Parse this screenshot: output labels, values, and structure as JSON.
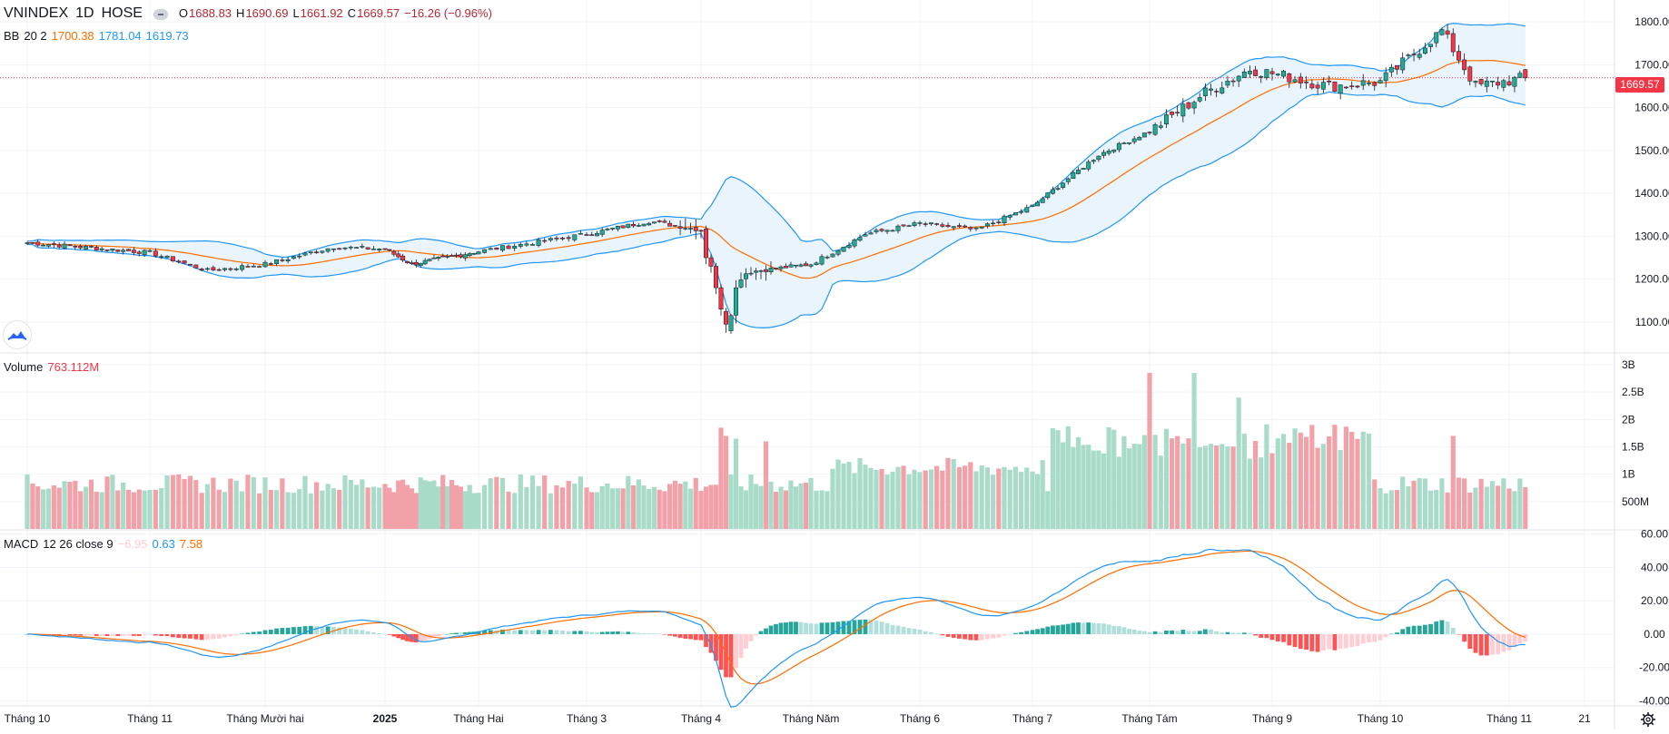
{
  "header": {
    "symbol": "VNINDEX",
    "interval": "1D",
    "exchange": "HOSE",
    "open_label": "O",
    "open": "1688.83",
    "high_label": "H",
    "high": "1690.69",
    "low_label": "L",
    "low": "1661.92",
    "close_label": "C",
    "close": "1669.57",
    "change": "−16.26 (−0.96%)"
  },
  "bb_legend": {
    "name": "BB",
    "params": "20 2",
    "basis": "1700.38",
    "upper": "1781.04",
    "lower": "1619.73"
  },
  "volume_legend": {
    "name": "Volume",
    "value": "763.112M"
  },
  "macd_legend": {
    "name": "MACD",
    "params": "12 26 close 9",
    "hist": "−6.95",
    "macd": "0.63",
    "signal": "7.58"
  },
  "last_price_tag": "1669.57",
  "colors": {
    "up": "#22ab94",
    "down": "#f23645",
    "vol_up": "#a8dcc9",
    "vol_down": "#f2a1a8",
    "bb_basis": "#ff6d00",
    "bb_band": "#2196f3",
    "bb_fill": "#eaf4fc",
    "macd": "#2196f3",
    "signal": "#ff6d00",
    "hist_up_strong": "#26a69a",
    "hist_up_weak": "#b2dfdb",
    "hist_down_strong": "#ff5252",
    "hist_down_weak": "#ffcdd2"
  },
  "icons": {
    "logo": "tradingview-cloud-logo-icon",
    "settings": "gear-icon",
    "hide": "minus-pill-icon"
  },
  "chart_data": [
    {
      "type": "candlestick",
      "title": "VNINDEX 1D HOSE",
      "y_ticks": [
        "1100.00",
        "1200.00",
        "1300.00",
        "1400.00",
        "1500.00",
        "1600.00",
        "1700.00",
        "1800.00"
      ],
      "ylim": [
        1030,
        1830
      ],
      "x_ticks": [
        "Tháng 10",
        "Tháng 11",
        "Tháng Mười hai",
        "2025",
        "Tháng Hai",
        "Tháng 3",
        "Tháng 4",
        "Tháng Năm",
        "Tháng 6",
        "Tháng 7",
        "Tháng Tám",
        "Tháng 9",
        "Tháng 10",
        "Tháng 11",
        "21"
      ],
      "last_close": 1669.57,
      "close_anchors": [
        [
          "Tháng 10",
          1285
        ],
        [
          "Tháng 11",
          1262
        ],
        [
          "mid-Nov",
          1220
        ],
        [
          "Tháng Mười hai",
          1235
        ],
        [
          "mid-Dec",
          1275
        ],
        [
          "2025",
          1270
        ],
        [
          "early-Jan",
          1235
        ],
        [
          "Tháng Hai",
          1265
        ],
        [
          "Tháng 3",
          1305
        ],
        [
          "mid-Mar",
          1335
        ],
        [
          "Tháng 4",
          1315
        ],
        [
          "Apr-3",
          1230
        ],
        [
          "Apr-9",
          1095
        ],
        [
          "Apr-14",
          1215
        ],
        [
          "Tháng Năm",
          1235
        ],
        [
          "mid-May",
          1305
        ],
        [
          "Tháng 6",
          1330
        ],
        [
          "mid-Jun",
          1315
        ],
        [
          "Tháng 7",
          1370
        ],
        [
          "mid-Jul",
          1490
        ],
        [
          "Tháng Tám",
          1545
        ],
        [
          "mid-Aug",
          1635
        ],
        [
          "late-Aug",
          1690
        ],
        [
          "Tháng 9",
          1680
        ],
        [
          "mid-Sep",
          1650
        ],
        [
          "Tháng 10",
          1660
        ],
        [
          "mid-Oct",
          1780
        ],
        [
          "late-Oct",
          1650
        ],
        [
          "Tháng 11",
          1669.57
        ]
      ],
      "indicator": {
        "name": "BB",
        "length": 20,
        "mult": 2,
        "basis": 1700.38,
        "upper": 1781.04,
        "lower": 1619.73
      }
    },
    {
      "type": "bar",
      "title": "Volume",
      "y_ticks": [
        "500M",
        "1B",
        "1.5B",
        "2B",
        "2.5B",
        "3B"
      ],
      "ylim": [
        0,
        3000000000
      ],
      "last_value": 763112000,
      "notable_peaks": [
        [
          "Apr-9",
          1850000000
        ],
        [
          "Apr-10",
          1700000000
        ],
        [
          "Aug-5",
          2850000000
        ],
        [
          "Aug-13",
          2850000000
        ],
        [
          "Aug-21",
          2400000000
        ],
        [
          "Sep-17",
          1900000000
        ],
        [
          "Oct-27",
          1700000000
        ]
      ]
    },
    {
      "type": "line",
      "title": "MACD 12 26 close 9",
      "y_ticks": [
        "-40.00",
        "-20.00",
        "0.00",
        "20.00",
        "40.00",
        "60.00"
      ],
      "ylim": [
        -43,
        62
      ],
      "series": [
        {
          "name": "MACD",
          "last": 0.63
        },
        {
          "name": "Signal",
          "last": 7.58
        },
        {
          "name": "Histogram",
          "last": -6.95
        }
      ]
    }
  ]
}
